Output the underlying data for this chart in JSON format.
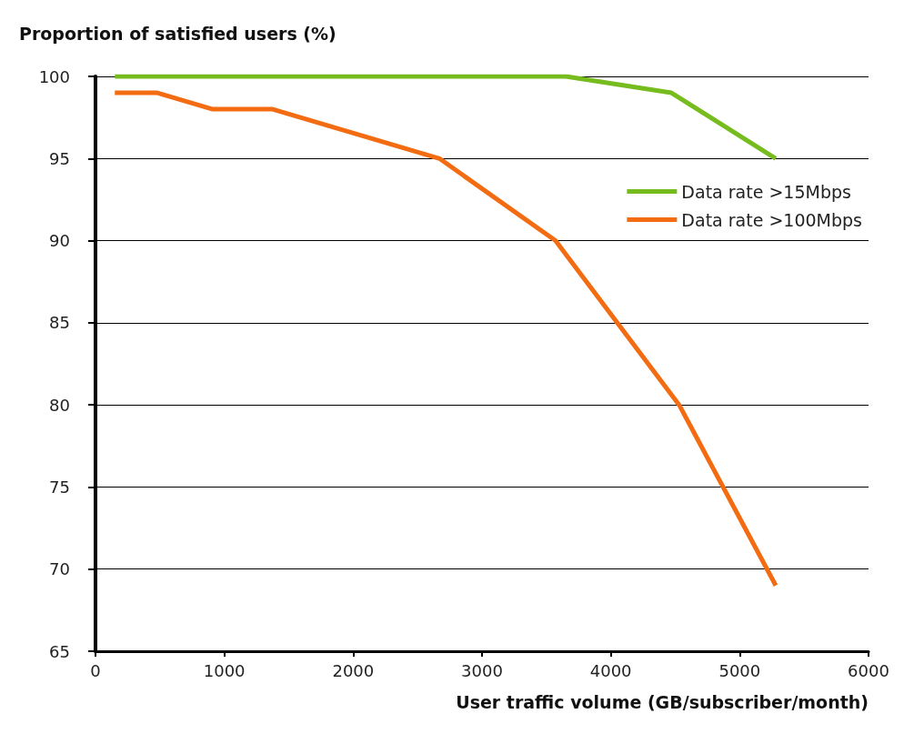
{
  "chart_data": {
    "type": "line",
    "ylabel": "Proportion of satisfied users (%)",
    "xlabel": "User traffic volume (GB/subscriber/month)",
    "series": [
      {
        "name": "Data rate >15Mbps",
        "color": "#77bc1f",
        "x": [
          150,
          3650,
          4470,
          5280
        ],
        "values": [
          100,
          100,
          99,
          95
        ]
      },
      {
        "name": "Data rate >100Mbps",
        "color": "#f36c12",
        "x": [
          150,
          480,
          910,
          1375,
          2670,
          3570,
          4530,
          5280
        ],
        "values": [
          99,
          99,
          98,
          98,
          95,
          90,
          80,
          69
        ]
      }
    ],
    "xlim": [
      0,
      6000
    ],
    "xticks": [
      0,
      1000,
      2000,
      3000,
      4000,
      5000,
      6000
    ],
    "ylim": [
      65,
      100
    ],
    "yticks": [
      65,
      70,
      75,
      80,
      85,
      90,
      95,
      100
    ],
    "grid": "y",
    "legend": "top right",
    "marker": "none",
    "line_style": "solid"
  }
}
